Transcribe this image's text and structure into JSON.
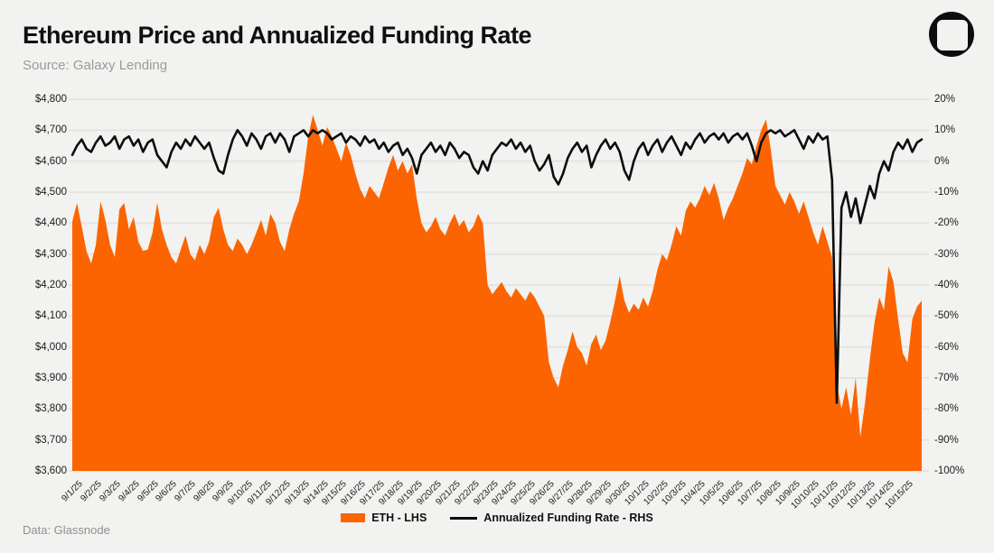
{
  "header": {
    "title": "Ethereum Price and Annualized Funding Rate",
    "source": "Source: Galaxy Lending"
  },
  "footer": {
    "data_note": "Data: Glassnode"
  },
  "legend": {
    "eth": {
      "label": "ETH - LHS",
      "color": "#fb6400"
    },
    "funding": {
      "label": "Annualized Funding Rate - RHS",
      "color": "#0d0d0d"
    }
  },
  "colors": {
    "background": "#f2f2f0",
    "gridline": "#e4e4e2",
    "area": "#fb6400",
    "line": "#0d0d0d",
    "axis_text": "#1c1c1c",
    "subtitle_gray": "#9b9b9b",
    "logo_black": "#0d0d0d"
  },
  "chart_data": {
    "type": "area",
    "note": "orange ETH price area on left axis plus black funding-rate line on right axis; values sampled every 0.25 day from 9/1/25 through end of 10/15/25",
    "x_tick_labels": [
      "9/1/25",
      "9/2/25",
      "9/3/25",
      "9/4/25",
      "9/5/25",
      "9/6/25",
      "9/7/25",
      "9/8/25",
      "9/9/25",
      "9/10/25",
      "9/11/25",
      "9/12/25",
      "9/13/25",
      "9/14/25",
      "9/15/25",
      "9/16/25",
      "9/17/25",
      "9/18/25",
      "9/19/25",
      "9/20/25",
      "9/21/25",
      "9/22/25",
      "9/23/25",
      "9/24/25",
      "9/25/25",
      "9/26/25",
      "9/27/25",
      "9/28/25",
      "9/29/25",
      "9/30/25",
      "10/1/25",
      "10/2/25",
      "10/3/25",
      "10/4/25",
      "10/5/25",
      "10/6/25",
      "10/7/25",
      "10/8/25",
      "10/9/25",
      "10/10/25",
      "10/11/25",
      "10/12/25",
      "10/13/25",
      "10/14/25",
      "10/15/25"
    ],
    "left_axis": {
      "tick_labels": [
        "$4,800",
        "$4,700",
        "$4,600",
        "$4,500",
        "$4,400",
        "$4,300",
        "$4,200",
        "$4,100",
        "$4,000",
        "$3,900",
        "$3,800",
        "$3,700",
        "$3,600"
      ],
      "min": 3600,
      "max": 4800
    },
    "right_axis": {
      "tick_labels": [
        "20%",
        "10%",
        "0%",
        "-10%",
        "-20%",
        "-30%",
        "-40%",
        "-50%",
        "-60%",
        "-70%",
        "-80%",
        "-90%",
        "-100%"
      ],
      "min": -100,
      "max": 20
    },
    "grid": true,
    "legend_position": "bottom-center",
    "series": [
      {
        "name": "ETH - LHS",
        "type": "area",
        "axis": "left",
        "color": "#fb6400",
        "values": [
          4405,
          4465,
          4390,
          4310,
          4270,
          4330,
          4470,
          4410,
          4330,
          4290,
          4445,
          4465,
          4380,
          4420,
          4340,
          4310,
          4315,
          4370,
          4465,
          4380,
          4330,
          4290,
          4270,
          4315,
          4360,
          4300,
          4280,
          4330,
          4300,
          4340,
          4420,
          4450,
          4380,
          4330,
          4310,
          4350,
          4330,
          4300,
          4330,
          4370,
          4410,
          4360,
          4430,
          4400,
          4340,
          4310,
          4380,
          4430,
          4470,
          4560,
          4680,
          4750,
          4700,
          4650,
          4710,
          4680,
          4640,
          4600,
          4660,
          4620,
          4560,
          4510,
          4480,
          4520,
          4500,
          4480,
          4530,
          4580,
          4620,
          4570,
          4600,
          4560,
          4590,
          4480,
          4400,
          4370,
          4390,
          4420,
          4380,
          4360,
          4400,
          4430,
          4390,
          4410,
          4370,
          4390,
          4430,
          4400,
          4200,
          4170,
          4190,
          4210,
          4180,
          4160,
          4190,
          4170,
          4150,
          4180,
          4160,
          4130,
          4100,
          3950,
          3900,
          3870,
          3940,
          3990,
          4050,
          4000,
          3980,
          3940,
          4010,
          4040,
          3990,
          4020,
          4080,
          4150,
          4230,
          4150,
          4110,
          4140,
          4120,
          4160,
          4130,
          4180,
          4250,
          4300,
          4280,
          4330,
          4390,
          4360,
          4440,
          4470,
          4450,
          4480,
          4520,
          4490,
          4530,
          4480,
          4410,
          4450,
          4480,
          4520,
          4560,
          4610,
          4590,
          4650,
          4700,
          4735,
          4640,
          4520,
          4490,
          4460,
          4500,
          4470,
          4430,
          4470,
          4420,
          4370,
          4330,
          4390,
          4340,
          4290,
          3880,
          3800,
          3870,
          3780,
          3900,
          3710,
          3820,
          3960,
          4080,
          4160,
          4120,
          4260,
          4210,
          4090,
          3980,
          3950,
          4090,
          4130,
          4150
        ]
      },
      {
        "name": "Annualized Funding Rate - RHS",
        "type": "line",
        "axis": "right",
        "color": "#0d0d0d",
        "values": [
          2,
          5,
          7,
          4,
          3,
          6,
          8,
          5,
          6,
          8,
          4,
          7,
          8,
          5,
          7,
          3,
          6,
          7,
          2,
          0,
          -2,
          3,
          6,
          4,
          7,
          5,
          8,
          6,
          4,
          6,
          1,
          -3,
          -4,
          2,
          7,
          10,
          8,
          5,
          9,
          7,
          4,
          8,
          9,
          6,
          9,
          7,
          3,
          8,
          9,
          10,
          8,
          10,
          9,
          10,
          9,
          7,
          8,
          9,
          6,
          8,
          7,
          5,
          8,
          6,
          7,
          4,
          6,
          3,
          5,
          6,
          2,
          4,
          1,
          -4,
          2,
          4,
          6,
          3,
          5,
          2,
          6,
          4,
          1,
          3,
          2,
          -2,
          -4,
          0,
          -3,
          2,
          4,
          6,
          5,
          7,
          4,
          6,
          3,
          5,
          0,
          -3,
          -1,
          2,
          -5,
          -7.5,
          -4,
          1,
          4,
          6,
          3,
          5,
          -2,
          2,
          5,
          7,
          4,
          6,
          3,
          -3,
          -6,
          0,
          4,
          6,
          2,
          5,
          7,
          3,
          6,
          8,
          5,
          2,
          6,
          4,
          7,
          9,
          6,
          8,
          9,
          7,
          9,
          6,
          8,
          9,
          7,
          9,
          5,
          0,
          6,
          9,
          10,
          9,
          10,
          8,
          9,
          10,
          7,
          4,
          8,
          6,
          9,
          7,
          8,
          -6,
          -78,
          -15,
          -10,
          -18,
          -12,
          -20,
          -14,
          -8,
          -12,
          -4,
          0,
          -3,
          3,
          6,
          4,
          7,
          3,
          6,
          7
        ]
      }
    ]
  }
}
